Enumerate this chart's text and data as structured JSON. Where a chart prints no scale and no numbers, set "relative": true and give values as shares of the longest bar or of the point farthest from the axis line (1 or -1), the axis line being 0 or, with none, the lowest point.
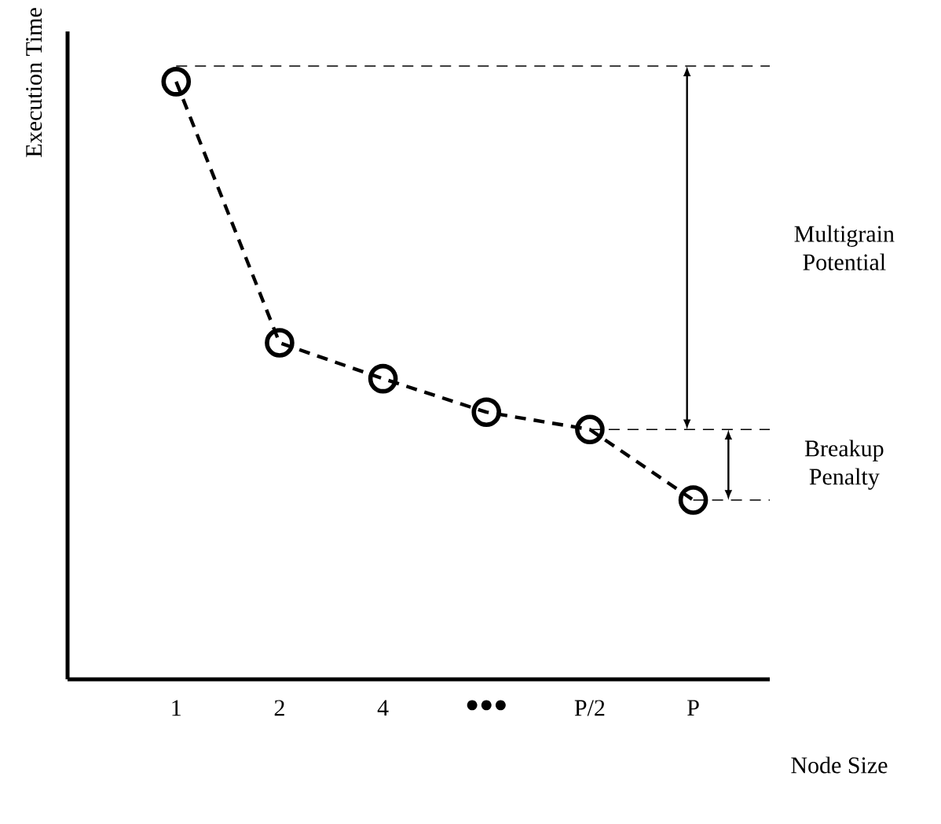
{
  "chart_data": {
    "type": "line",
    "xlabel": "Node Size",
    "ylabel": "Execution Time",
    "categories": [
      "1",
      "2",
      "4",
      "●●●",
      "P/2",
      "P"
    ],
    "relative": true,
    "series": [
      {
        "color": "#000000",
        "values": [
          1,
          0.563,
          0.503,
          0.447,
          0.418,
          0.3
        ]
      }
    ],
    "marker": "circle",
    "line_style": "dashed",
    "ref_lines": [
      {
        "axis": "y",
        "value": 1.026,
        "line_style": "dashed"
      },
      {
        "axis": "y",
        "value": 0.418,
        "line_style": "dashed"
      },
      {
        "axis": "y",
        "value": 0.3,
        "line_style": "dashed"
      }
    ],
    "annotations": [
      "Multigrain Potential",
      "Breakup Penalty"
    ]
  }
}
